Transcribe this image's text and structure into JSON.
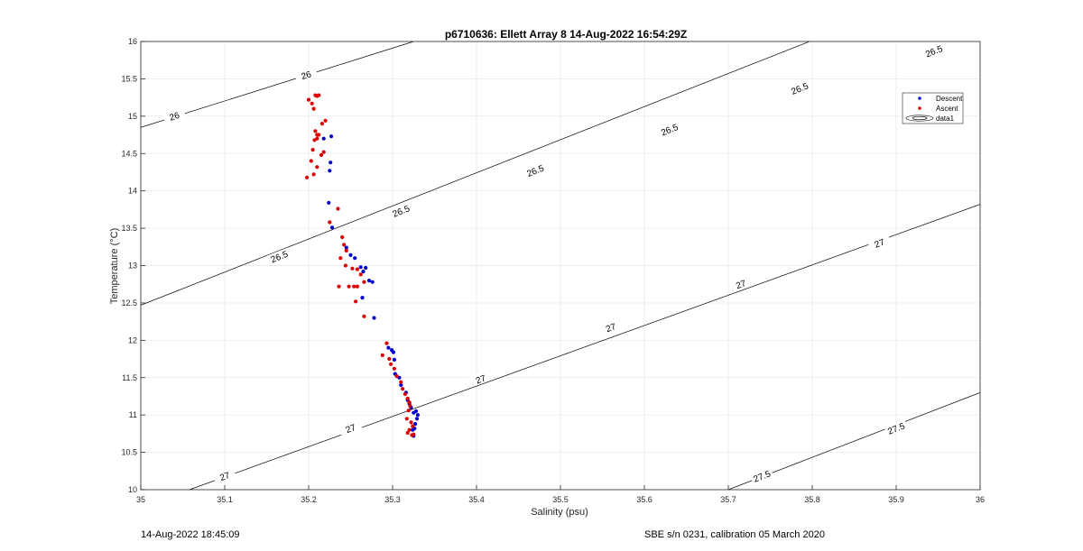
{
  "footer": {
    "timestamp": "14-Aug-2022 18:45:09",
    "calibration": "SBE s/n 0231, calibration 05 March 2020"
  },
  "chart_data": {
    "type": "scatter",
    "title": "p6710636: Ellett Array 8 14-Aug-2022 16:54:29Z",
    "xlabel": "Salinity (psu)",
    "ylabel": "Temperature (°C)",
    "xlim": [
      35,
      36
    ],
    "ylim": [
      10,
      16
    ],
    "xticks": [
      "35",
      "35.1",
      "35.2",
      "35.3",
      "35.4",
      "35.5",
      "35.6",
      "35.7",
      "35.8",
      "35.9",
      "36"
    ],
    "yticks": [
      "10",
      "10.5",
      "11",
      "11.5",
      "12",
      "12.5",
      "13",
      "13.5",
      "14",
      "14.5",
      "15",
      "15.5",
      "16"
    ],
    "grid": true,
    "legend": {
      "position": "top-right",
      "entries": [
        "Descent",
        "Ascent",
        "data1"
      ]
    },
    "colors": {
      "descent": "#0000cc",
      "ascent": "#dd0000",
      "contour": "#000000",
      "grid": "#e6e6e6"
    },
    "contours": [
      {
        "label": "26",
        "x": [
          35,
          35.325
        ],
        "y": [
          14.85,
          16
        ],
        "label_positions": [
          [
            35.04,
            15.0
          ],
          [
            35.197,
            15.55
          ]
        ]
      },
      {
        "label": "26.5",
        "x": [
          35,
          36
        ],
        "y": [
          12.47,
          16.9
        ],
        "label_positions": [
          [
            35.165,
            13.12
          ],
          [
            35.31,
            13.73
          ],
          [
            35.47,
            14.27
          ],
          [
            35.63,
            14.82
          ],
          [
            35.785,
            15.37
          ],
          [
            35.945,
            15.87
          ]
        ]
      },
      {
        "label": "27",
        "x": [
          35.058,
          36
        ],
        "y": [
          10,
          13.82
        ],
        "label_positions": [
          [
            35.1,
            10.18
          ],
          [
            35.25,
            10.82
          ],
          [
            35.405,
            11.48
          ],
          [
            35.56,
            12.17
          ],
          [
            35.715,
            12.75
          ],
          [
            35.88,
            13.3
          ]
        ]
      },
      {
        "label": "27.5",
        "x": [
          35.7,
          36
        ],
        "y": [
          10,
          11.3
        ],
        "label_positions": [
          [
            35.74,
            10.18
          ],
          [
            35.9,
            10.82
          ]
        ]
      }
    ],
    "series": [
      {
        "name": "Descent",
        "x": [
          35.218,
          35.227,
          35.226,
          35.225,
          35.224,
          35.228,
          35.245,
          35.25,
          35.255,
          35.262,
          35.265,
          35.268,
          35.272,
          35.276,
          35.278,
          35.264,
          35.295,
          35.299,
          35.301,
          35.302,
          35.303,
          35.308,
          35.31,
          35.316,
          35.318,
          35.32,
          35.322,
          35.325,
          35.328,
          35.33,
          35.329,
          35.327,
          35.326,
          35.324,
          35.325
        ],
        "y": [
          14.7,
          14.73,
          14.38,
          14.27,
          13.84,
          13.51,
          13.24,
          13.14,
          13.1,
          12.98,
          12.92,
          12.97,
          12.8,
          12.78,
          12.3,
          12.57,
          11.9,
          11.87,
          11.84,
          11.74,
          11.55,
          11.5,
          11.4,
          11.3,
          11.2,
          11.15,
          11.1,
          11.03,
          11.05,
          11.0,
          10.95,
          10.88,
          10.82,
          10.8,
          10.72
        ]
      },
      {
        "name": "Ascent",
        "x": [
          35.2,
          35.204,
          35.208,
          35.21,
          35.212,
          35.206,
          35.208,
          35.21,
          35.21,
          35.212,
          35.207,
          35.205,
          35.203,
          35.215,
          35.218,
          35.216,
          35.21,
          35.206,
          35.198,
          35.22,
          35.225,
          35.235,
          35.24,
          35.242,
          35.245,
          35.238,
          35.244,
          35.252,
          35.258,
          35.262,
          35.266,
          35.248,
          35.254,
          35.236,
          35.258,
          35.256,
          35.266,
          35.293,
          35.288,
          35.296,
          35.298,
          35.302,
          35.305,
          35.31,
          35.312,
          35.315,
          35.318,
          35.32,
          35.321,
          35.319,
          35.317,
          35.322,
          35.324,
          35.32,
          35.318,
          35.323,
          35.325
        ],
        "y": [
          15.22,
          15.17,
          15.28,
          15.27,
          15.28,
          15.1,
          14.8,
          14.75,
          14.7,
          14.75,
          14.68,
          14.55,
          14.4,
          14.48,
          14.52,
          14.9,
          14.32,
          14.22,
          14.18,
          14.94,
          13.58,
          13.76,
          13.38,
          13.28,
          13.2,
          13.1,
          13.0,
          12.96,
          12.95,
          12.88,
          12.78,
          12.72,
          12.72,
          12.72,
          12.72,
          12.52,
          12.32,
          11.96,
          11.8,
          11.75,
          11.68,
          11.62,
          11.52,
          11.44,
          11.35,
          11.28,
          11.22,
          11.17,
          11.12,
          11.06,
          10.95,
          10.9,
          10.85,
          10.8,
          10.76,
          10.73,
          10.74
        ]
      }
    ]
  }
}
